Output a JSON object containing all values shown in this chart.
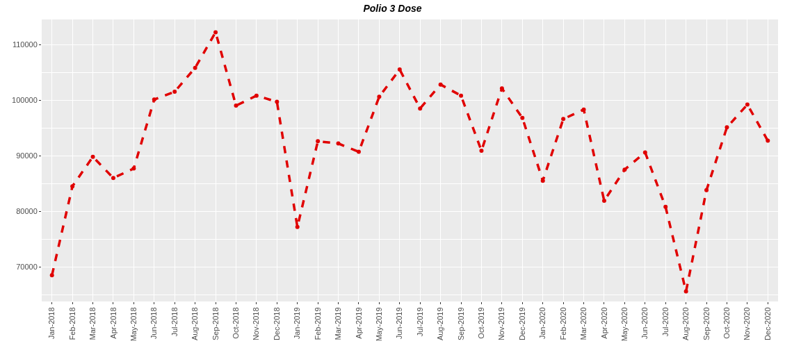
{
  "chart_data": {
    "type": "line",
    "title": "Polio 3 Dose",
    "categories": [
      "Jan-2018",
      "Feb-2018",
      "Mar-2018",
      "Apr-2018",
      "May-2018",
      "Jun-2018",
      "Jul-2018",
      "Aug-2018",
      "Sep-2018",
      "Oct-2018",
      "Nov-2018",
      "Dec-2018",
      "Jan-2019",
      "Feb-2019",
      "Mar-2019",
      "Apr-2019",
      "May-2019",
      "Jun-2019",
      "Jul-2019",
      "Aug-2019",
      "Sep-2019",
      "Oct-2019",
      "Nov-2019",
      "Dec-2019",
      "Jan-2020",
      "Feb-2020",
      "Mar-2020",
      "Apr-2020",
      "May-2020",
      "Jun-2020",
      "Jul-2020",
      "Aug-2020",
      "Sep-2020",
      "Oct-2020",
      "Nov-2020",
      "Dec-2020"
    ],
    "series": [
      {
        "color": "#e00000",
        "values": [
          68500,
          84500,
          89800,
          86000,
          87700,
          100100,
          101500,
          105800,
          112200,
          99000,
          100800,
          99700,
          77200,
          92600,
          92200,
          90700,
          100600,
          105500,
          98500,
          102800,
          100800,
          90900,
          102100,
          96800,
          85500,
          96600,
          98300,
          81900,
          87500,
          90600,
          80800,
          65600,
          83800,
          95100,
          99200,
          92700
        ]
      }
    ],
    "ylim": [
      63800,
      114500
    ],
    "yticks": [
      70000,
      80000,
      90000,
      100000,
      110000
    ],
    "grid": true,
    "marker": "circle",
    "line_style": "dashed"
  }
}
